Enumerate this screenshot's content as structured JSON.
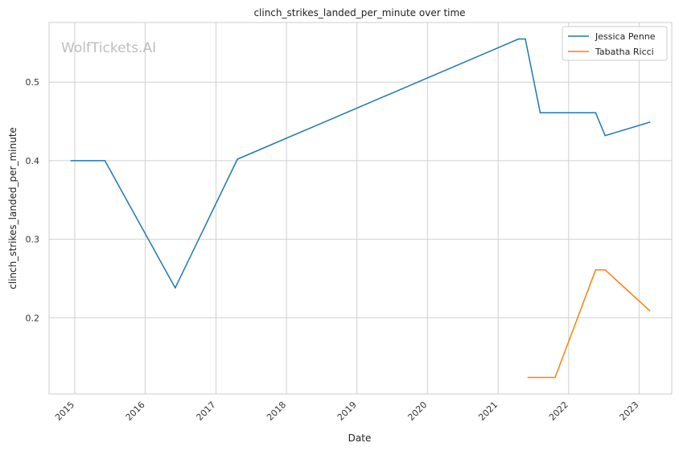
{
  "chart_data": {
    "type": "line",
    "title": "clinch_strikes_landed_per_minute over time",
    "xlabel": "Date",
    "ylabel": "clinch_strikes_landed_per_minute",
    "watermark": "WolfTickets.AI",
    "x_tick_labels": [
      "2015",
      "2016",
      "2017",
      "2018",
      "2019",
      "2020",
      "2021",
      "2022",
      "2023"
    ],
    "y_tick_labels": [
      "0.2",
      "0.3",
      "0.4",
      "0.5"
    ],
    "xlim": [
      "2014-08-21",
      "2023-06-19"
    ],
    "ylim": [
      0.103,
      0.576
    ],
    "grid": true,
    "legend_position": "top-right",
    "series": [
      {
        "name": "Jessica Penne",
        "color": "#1f77b4",
        "x": [
          "2014-12-13",
          "2015-06-06",
          "2016-06-04",
          "2017-04-22",
          "2021-04-17",
          "2021-05-22",
          "2021-08-07",
          "2022-05-21",
          "2022-07-09",
          "2023-02-25"
        ],
        "y": [
          0.4,
          0.4,
          0.238,
          0.402,
          0.555,
          0.555,
          0.461,
          0.461,
          0.432,
          0.449
        ]
      },
      {
        "name": "Tabatha Ricci",
        "color": "#ff7f0e",
        "x": [
          "2021-06-05",
          "2021-10-23",
          "2022-05-21",
          "2022-07-09",
          "2023-02-25"
        ],
        "y": [
          0.124,
          0.124,
          0.261,
          0.261,
          0.209
        ]
      }
    ]
  }
}
